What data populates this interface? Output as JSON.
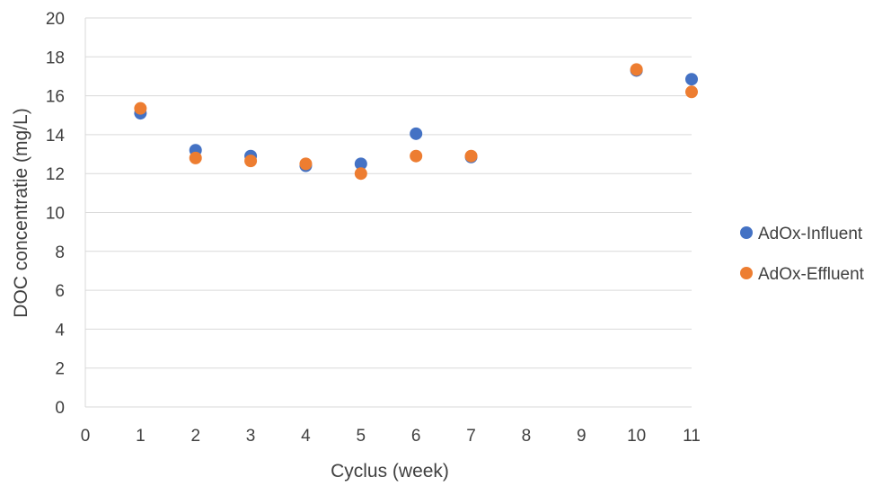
{
  "chart_data": {
    "type": "scatter",
    "xlabel": "Cyclus (week)",
    "ylabel": "DOC concentratie (mg/L)",
    "ylim": [
      0,
      20
    ],
    "yticks": [
      0,
      2,
      4,
      6,
      8,
      10,
      12,
      14,
      16,
      18,
      20
    ],
    "xtick_labels": [
      "0",
      "1",
      "2",
      "3",
      "4",
      "5",
      "6",
      "7",
      "8",
      "9",
      "10",
      "11"
    ],
    "grid": "horizontal",
    "legend_position": "right",
    "series": [
      {
        "name": "AdOx-Influent",
        "color": "#4472C4",
        "points": [
          {
            "x": "1",
            "y": 15.1
          },
          {
            "x": "2",
            "y": 13.2
          },
          {
            "x": "3",
            "y": 12.9
          },
          {
            "x": "4",
            "y": 12.4
          },
          {
            "x": "5",
            "y": 12.5
          },
          {
            "x": "6",
            "y": 14.05
          },
          {
            "x": "7",
            "y": 12.85
          },
          {
            "x": "10",
            "y": 17.3
          },
          {
            "x": "11",
            "y": 16.85
          }
        ]
      },
      {
        "name": "AdOx-Effluent",
        "color": "#ED7D31",
        "points": [
          {
            "x": "1",
            "y": 15.35
          },
          {
            "x": "2",
            "y": 12.8
          },
          {
            "x": "3",
            "y": 12.65
          },
          {
            "x": "4",
            "y": 12.5
          },
          {
            "x": "5",
            "y": 12.0
          },
          {
            "x": "6",
            "y": 12.9
          },
          {
            "x": "7",
            "y": 12.9
          },
          {
            "x": "10",
            "y": 17.35
          },
          {
            "x": "11",
            "y": 16.2
          }
        ]
      }
    ]
  }
}
